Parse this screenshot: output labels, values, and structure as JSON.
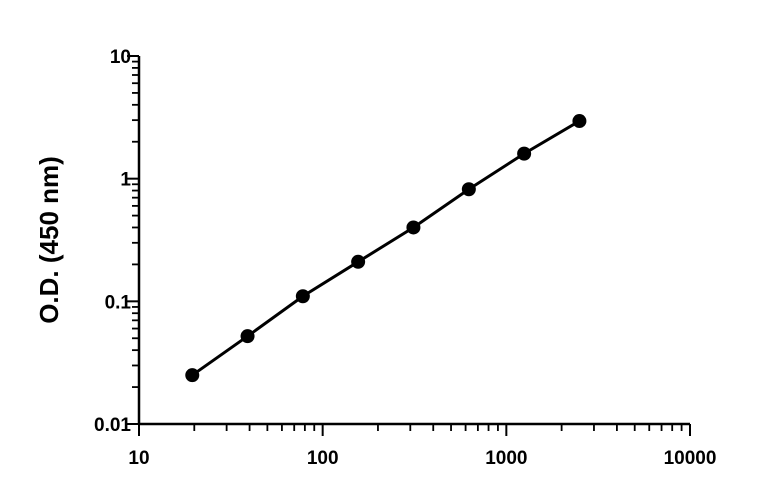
{
  "chart_data": {
    "type": "scatter",
    "title": "",
    "xlabel": "",
    "ylabel": "O.D. (450 nm)",
    "xscale": "log",
    "yscale": "log",
    "xlim": [
      10,
      10000
    ],
    "ylim": [
      0.01,
      10
    ],
    "x_ticks": [
      10,
      100,
      1000,
      10000
    ],
    "x_tick_labels": [
      "10",
      "100",
      "1000",
      "10000"
    ],
    "y_ticks": [
      0.01,
      0.1,
      1,
      10
    ],
    "y_tick_labels": [
      "0.01",
      "0.1",
      "1",
      "10"
    ],
    "grid": false,
    "legend": "none",
    "colors": {
      "series": "#000000"
    },
    "series": [
      {
        "x": [
          19.5,
          39,
          78,
          156,
          312,
          625,
          1250,
          2500
        ],
        "y": [
          0.025,
          0.052,
          0.11,
          0.21,
          0.4,
          0.82,
          1.6,
          2.95
        ],
        "fit_line": true
      }
    ]
  }
}
